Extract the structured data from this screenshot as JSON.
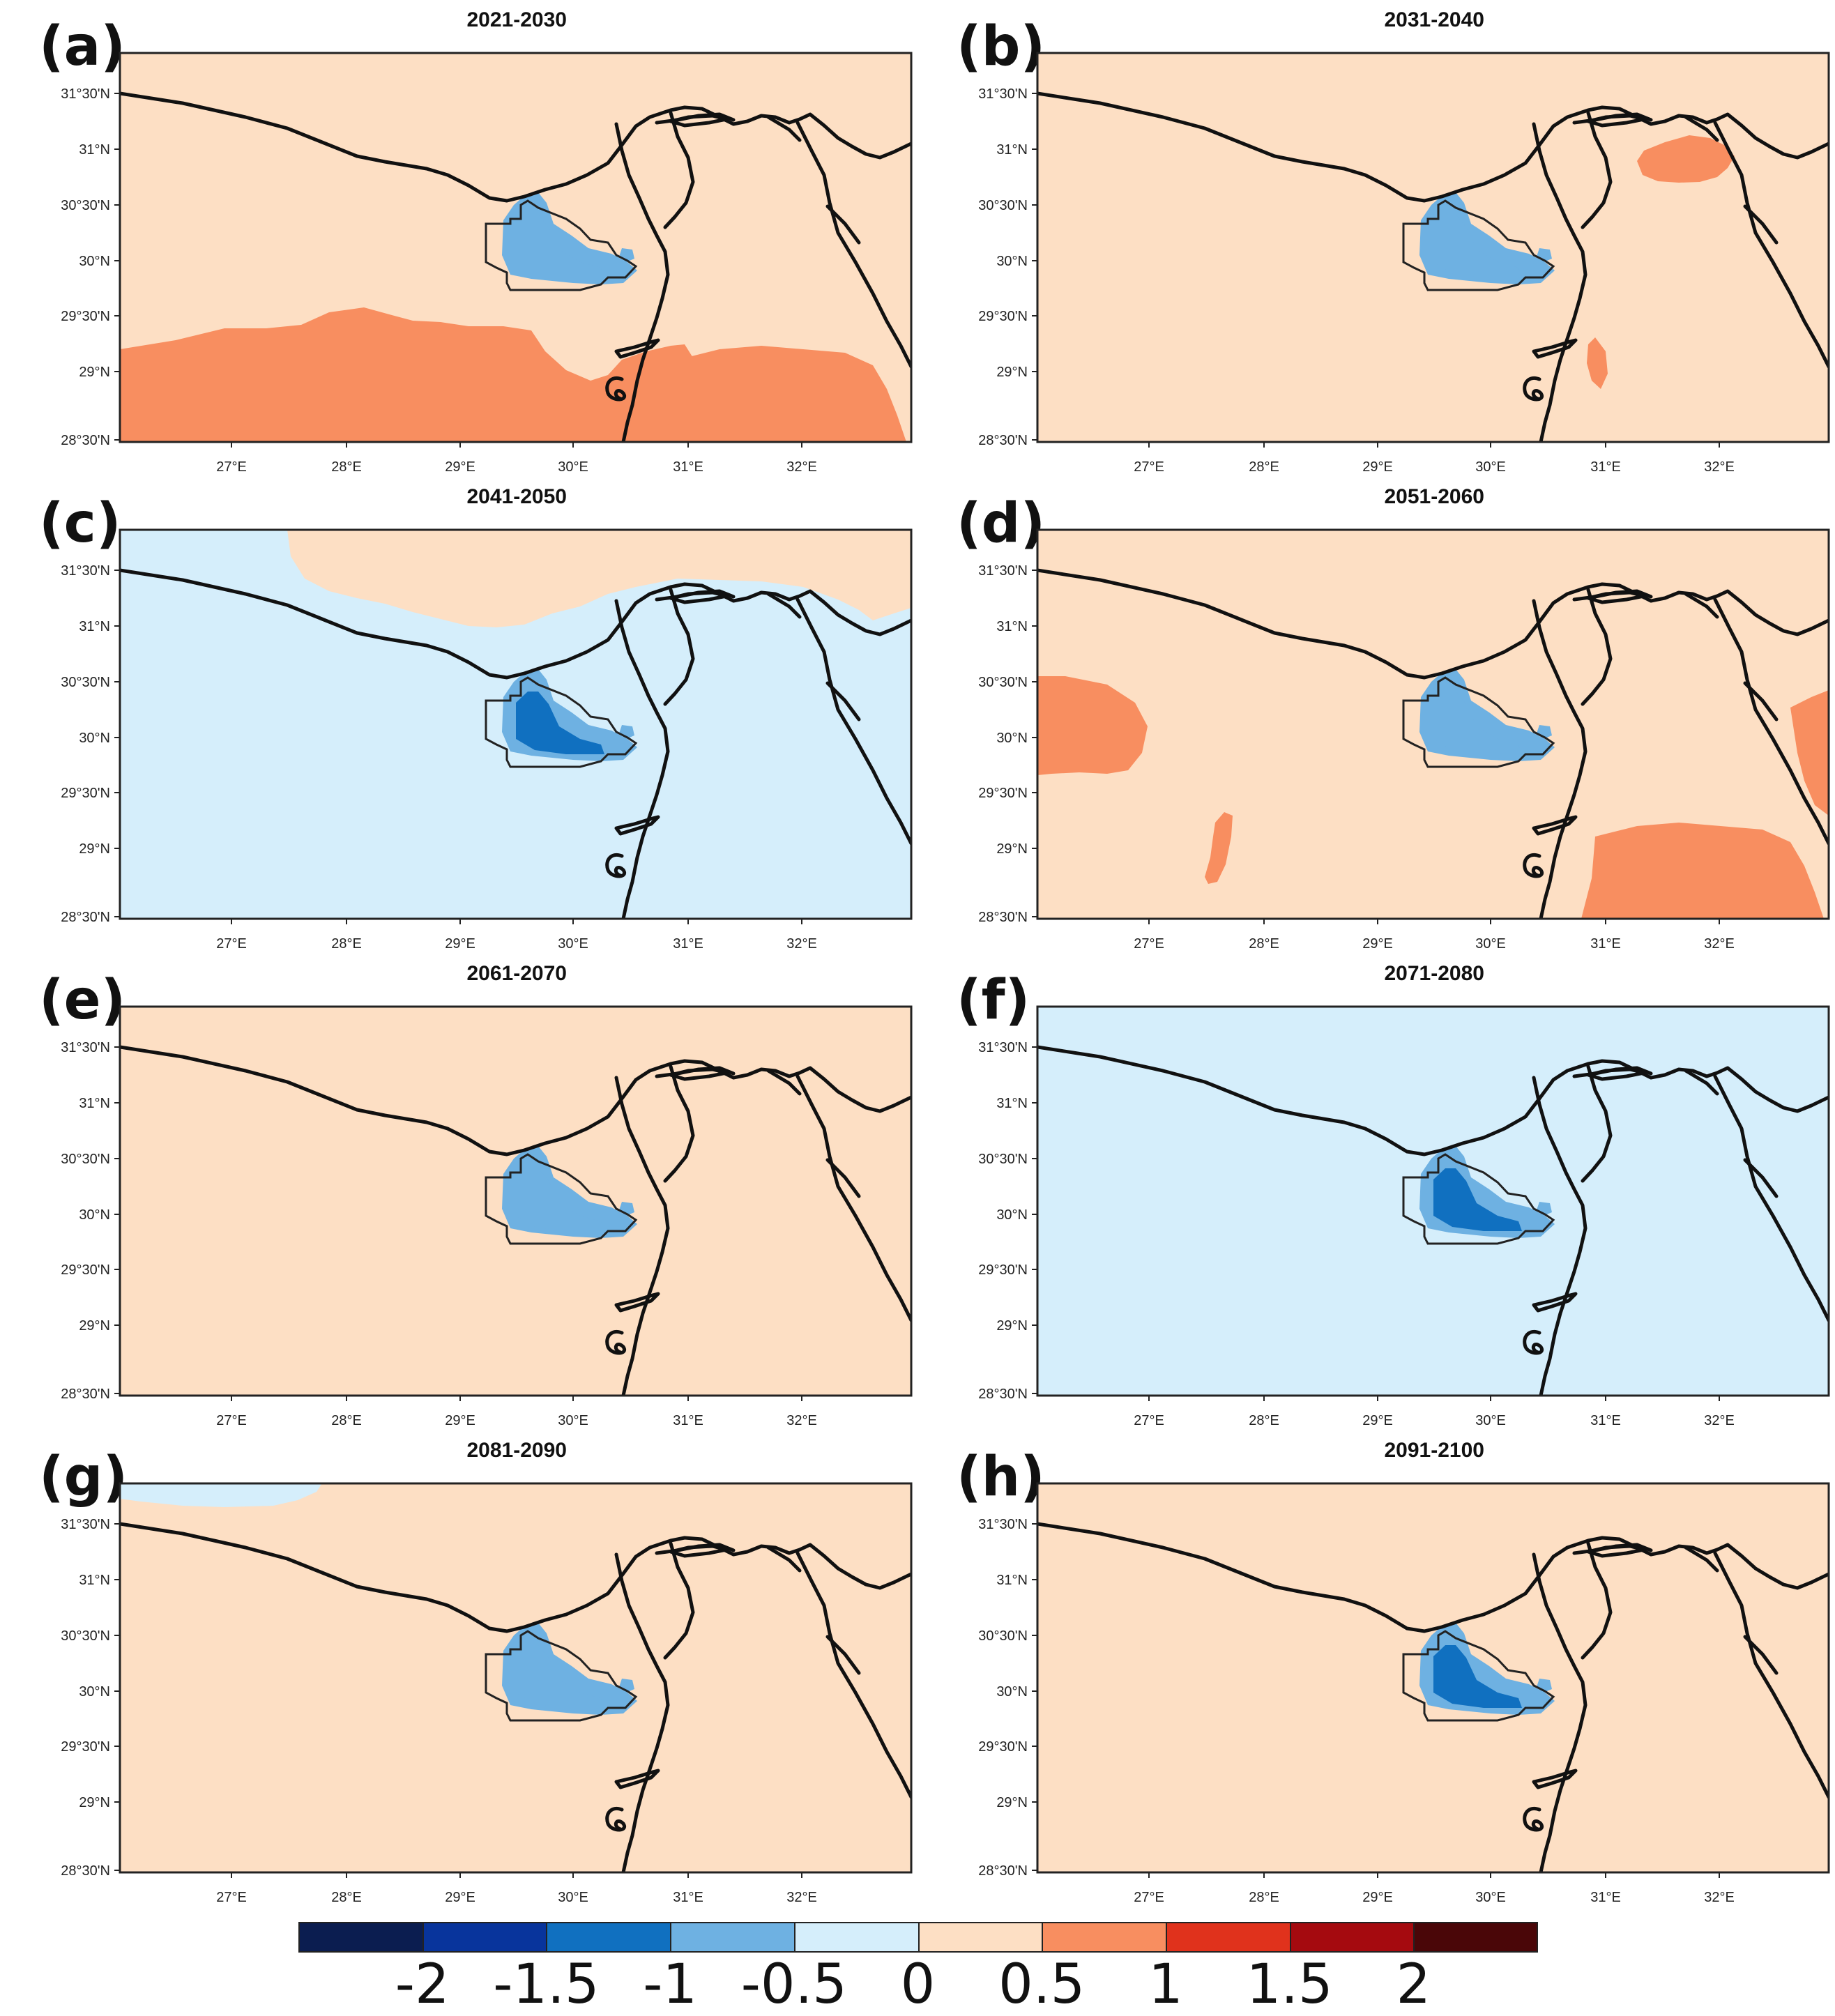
{
  "lat_labels": [
    "31°30'N",
    "31°N",
    "30°30'N",
    "30°N",
    "29°30'N",
    "29°N",
    "28°30'N"
  ],
  "lon_labels": [
    "27°E",
    "28°E",
    "29°E",
    "30°E",
    "31°E",
    "32°E"
  ],
  "colors": {
    "lt_-2": "#0b1d50",
    "-2_-1.5": "#08349c",
    "-1.5_-1": "#1070c0",
    "-1_-0.5": "#6eb1e2",
    "-0.5_0": "#d5eefb",
    "0_0.5": "#fddfc4",
    "0.5_1": "#f88e60",
    "1_1.5": "#e0321c",
    "1.5_2": "#a50a0f",
    "gt_2": "#4a0608"
  },
  "panels": [
    {
      "label": "(a)",
      "title": "2021-2030",
      "background": "0_0.5",
      "patches": [
        "0.5_1 south-band",
        "0.5_1 southeast"
      ]
    },
    {
      "label": "(b)",
      "title": "2031-2040",
      "background": "0_0.5",
      "patches": [
        "0.5_1 delta-north",
        "0.5_1 nile-valley"
      ]
    },
    {
      "label": "(c)",
      "title": "2041-2050",
      "background": "-0.5_0",
      "patches": [
        "0_0.5 north-sea"
      ]
    },
    {
      "label": "(d)",
      "title": "2051-2060",
      "background": "0_0.5",
      "patches": [
        "0.5_1 west",
        "0.5_1 southwest",
        "0.5_1 southeast",
        "0.5_1 east"
      ]
    },
    {
      "label": "(e)",
      "title": "2061-2070",
      "background": "0_0.5",
      "patches": []
    },
    {
      "label": "(f)",
      "title": "2071-2080",
      "background": "-0.5_0",
      "patches": []
    },
    {
      "label": "(g)",
      "title": "2081-2090",
      "background": "0_0.5",
      "patches": [
        "-0.5_0 northwest"
      ]
    },
    {
      "label": "(h)",
      "title": "2091-2100",
      "background": "0_0.5",
      "patches": []
    }
  ],
  "colorbar": {
    "bins": [
      "lt_-2",
      "-2_-1.5",
      "-1.5_-1",
      "-1_-0.5",
      "-0.5_0",
      "0_0.5",
      "0.5_1",
      "1_1.5",
      "1.5_2",
      "gt_2"
    ],
    "labels": [
      "-2",
      "-1.5",
      "-1",
      "-0.5",
      "0",
      "0.5",
      "1",
      "1.5",
      "2"
    ]
  }
}
